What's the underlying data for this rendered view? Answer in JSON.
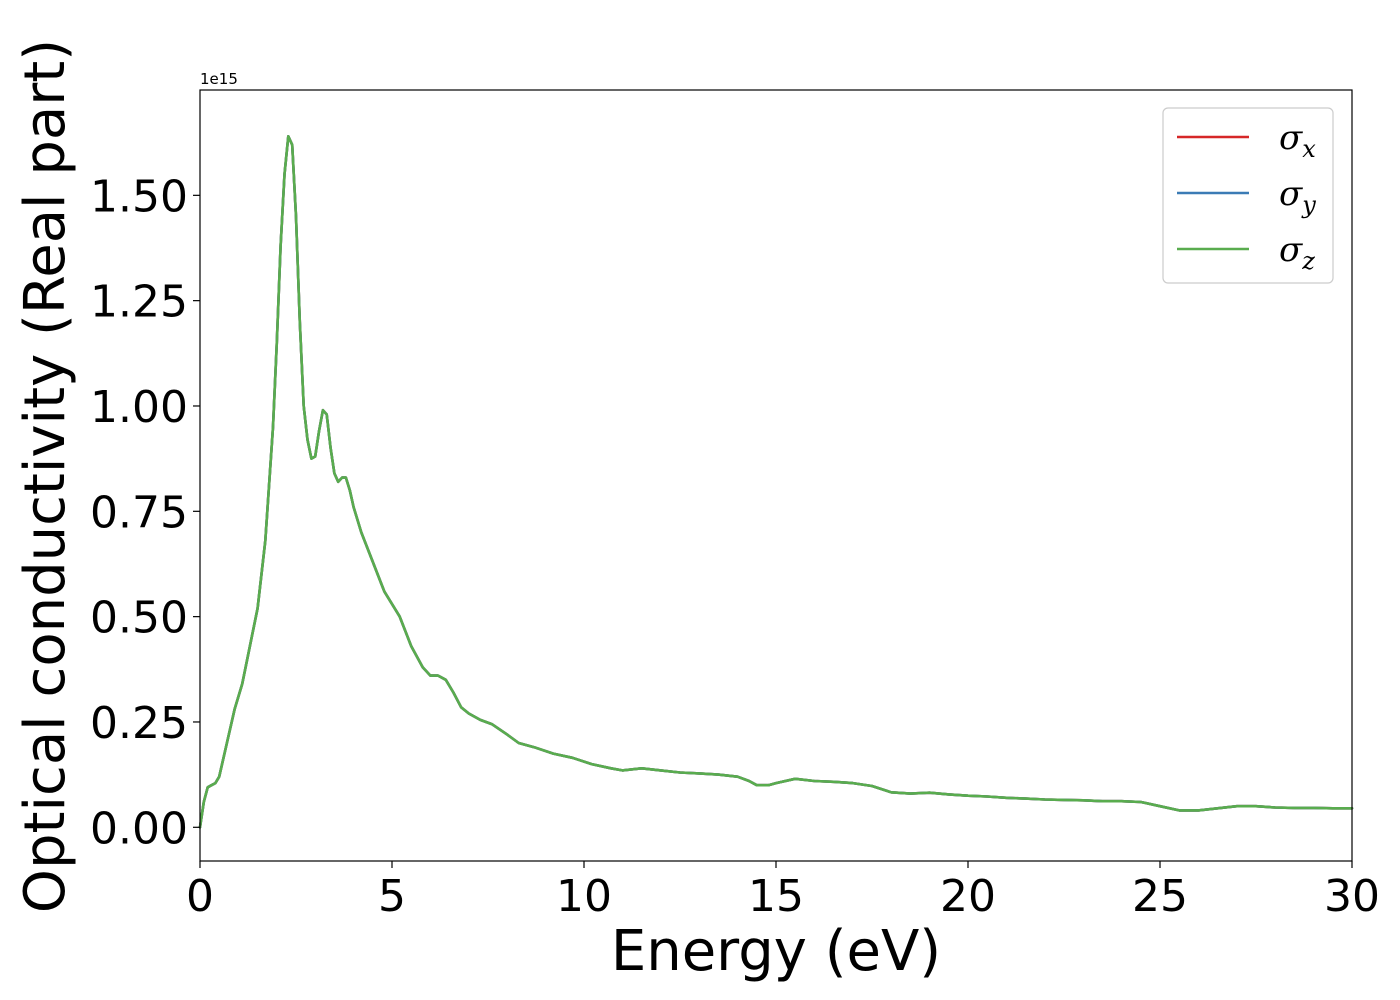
{
  "chart_data": {
    "type": "line",
    "title": "",
    "xlabel": "Energy (eV)",
    "ylabel": "Optical conductivity (Real part)",
    "y_offset_label": "1e15",
    "xlim": [
      0,
      30
    ],
    "ylim": [
      -0.08,
      1.75
    ],
    "x_ticks": [
      0,
      5,
      10,
      15,
      20,
      25,
      30
    ],
    "x_tick_labels": [
      "0",
      "5",
      "10",
      "15",
      "20",
      "25",
      "30"
    ],
    "y_ticks": [
      0,
      0.25,
      0.5,
      0.75,
      1.0,
      1.25,
      1.5
    ],
    "y_tick_labels": [
      "0.00",
      "0.25",
      "0.50",
      "0.75",
      "1.00",
      "1.25",
      "1.50"
    ],
    "grid": false,
    "legend_position": "top-right",
    "x": [
      0,
      0.1,
      0.2,
      0.3,
      0.4,
      0.5,
      0.7,
      0.9,
      1.1,
      1.3,
      1.5,
      1.7,
      1.9,
      2.0,
      2.1,
      2.2,
      2.3,
      2.4,
      2.5,
      2.6,
      2.7,
      2.8,
      2.9,
      3.0,
      3.1,
      3.2,
      3.3,
      3.4,
      3.5,
      3.6,
      3.7,
      3.8,
      3.9,
      4.0,
      4.2,
      4.5,
      4.8,
      5.2,
      5.5,
      5.8,
      6.0,
      6.2,
      6.4,
      6.6,
      6.8,
      7.0,
      7.3,
      7.6,
      8.0,
      8.3,
      8.7,
      9.2,
      9.7,
      10.2,
      10.7,
      11.0,
      11.5,
      12.0,
      12.5,
      13.0,
      13.5,
      14.0,
      14.3,
      14.5,
      14.8,
      15.0,
      15.5,
      16.0,
      16.5,
      17.0,
      17.5,
      18.0,
      18.5,
      19.0,
      19.5,
      20.0,
      20.5,
      21.0,
      21.5,
      22.0,
      22.5,
      23.0,
      23.5,
      24.0,
      24.5,
      25.0,
      25.5,
      26.0,
      26.5,
      27.0,
      27.5,
      28.0,
      28.5,
      29.0,
      29.5,
      30.0
    ],
    "series": [
      {
        "name": "σx",
        "color": "#d62728",
        "values": [
          0.0,
          0.06,
          0.095,
          0.1,
          0.105,
          0.12,
          0.2,
          0.28,
          0.34,
          0.43,
          0.52,
          0.68,
          0.95,
          1.15,
          1.38,
          1.55,
          1.64,
          1.62,
          1.45,
          1.2,
          1.0,
          0.92,
          0.875,
          0.88,
          0.94,
          0.99,
          0.98,
          0.9,
          0.84,
          0.82,
          0.83,
          0.83,
          0.8,
          0.76,
          0.7,
          0.63,
          0.56,
          0.5,
          0.43,
          0.38,
          0.36,
          0.36,
          0.35,
          0.32,
          0.285,
          0.27,
          0.255,
          0.245,
          0.22,
          0.2,
          0.19,
          0.175,
          0.165,
          0.15,
          0.14,
          0.135,
          0.14,
          0.135,
          0.13,
          0.128,
          0.125,
          0.12,
          0.11,
          0.1,
          0.1,
          0.105,
          0.115,
          0.11,
          0.108,
          0.105,
          0.098,
          0.083,
          0.08,
          0.082,
          0.078,
          0.075,
          0.073,
          0.07,
          0.068,
          0.066,
          0.065,
          0.064,
          0.062,
          0.062,
          0.06,
          0.05,
          0.04,
          0.04,
          0.045,
          0.05,
          0.05,
          0.047,
          0.046,
          0.046,
          0.045,
          0.045
        ]
      },
      {
        "name": "σy",
        "color": "#3b7bb5",
        "values": [
          0.0,
          0.06,
          0.095,
          0.1,
          0.105,
          0.12,
          0.2,
          0.28,
          0.34,
          0.43,
          0.52,
          0.68,
          0.95,
          1.15,
          1.38,
          1.55,
          1.64,
          1.62,
          1.45,
          1.2,
          1.0,
          0.92,
          0.875,
          0.88,
          0.94,
          0.99,
          0.98,
          0.9,
          0.84,
          0.82,
          0.83,
          0.83,
          0.8,
          0.76,
          0.7,
          0.63,
          0.56,
          0.5,
          0.43,
          0.38,
          0.36,
          0.36,
          0.35,
          0.32,
          0.285,
          0.27,
          0.255,
          0.245,
          0.22,
          0.2,
          0.19,
          0.175,
          0.165,
          0.15,
          0.14,
          0.135,
          0.14,
          0.135,
          0.13,
          0.128,
          0.125,
          0.12,
          0.11,
          0.1,
          0.1,
          0.105,
          0.115,
          0.11,
          0.108,
          0.105,
          0.098,
          0.083,
          0.08,
          0.082,
          0.078,
          0.075,
          0.073,
          0.07,
          0.068,
          0.066,
          0.065,
          0.064,
          0.062,
          0.062,
          0.06,
          0.05,
          0.04,
          0.04,
          0.045,
          0.05,
          0.05,
          0.047,
          0.046,
          0.046,
          0.045,
          0.045
        ]
      },
      {
        "name": "σz",
        "color": "#59ac4e",
        "values": [
          0.0,
          0.06,
          0.095,
          0.1,
          0.105,
          0.12,
          0.2,
          0.28,
          0.34,
          0.43,
          0.52,
          0.68,
          0.95,
          1.15,
          1.38,
          1.55,
          1.64,
          1.62,
          1.45,
          1.2,
          1.0,
          0.92,
          0.875,
          0.88,
          0.94,
          0.99,
          0.98,
          0.9,
          0.84,
          0.82,
          0.83,
          0.83,
          0.8,
          0.76,
          0.7,
          0.63,
          0.56,
          0.5,
          0.43,
          0.38,
          0.36,
          0.36,
          0.35,
          0.32,
          0.285,
          0.27,
          0.255,
          0.245,
          0.22,
          0.2,
          0.19,
          0.175,
          0.165,
          0.15,
          0.14,
          0.135,
          0.14,
          0.135,
          0.13,
          0.128,
          0.125,
          0.12,
          0.11,
          0.1,
          0.1,
          0.105,
          0.115,
          0.11,
          0.108,
          0.105,
          0.098,
          0.083,
          0.08,
          0.082,
          0.078,
          0.075,
          0.073,
          0.07,
          0.068,
          0.066,
          0.065,
          0.064,
          0.062,
          0.062,
          0.06,
          0.05,
          0.04,
          0.04,
          0.045,
          0.05,
          0.05,
          0.047,
          0.046,
          0.046,
          0.045,
          0.045
        ]
      }
    ],
    "legend": [
      {
        "symbol": "σ",
        "sub": "x",
        "color": "#d62728"
      },
      {
        "symbol": "σ",
        "sub": "y",
        "color": "#3b7bb5"
      },
      {
        "symbol": "σ",
        "sub": "z",
        "color": "#59ac4e"
      }
    ]
  }
}
